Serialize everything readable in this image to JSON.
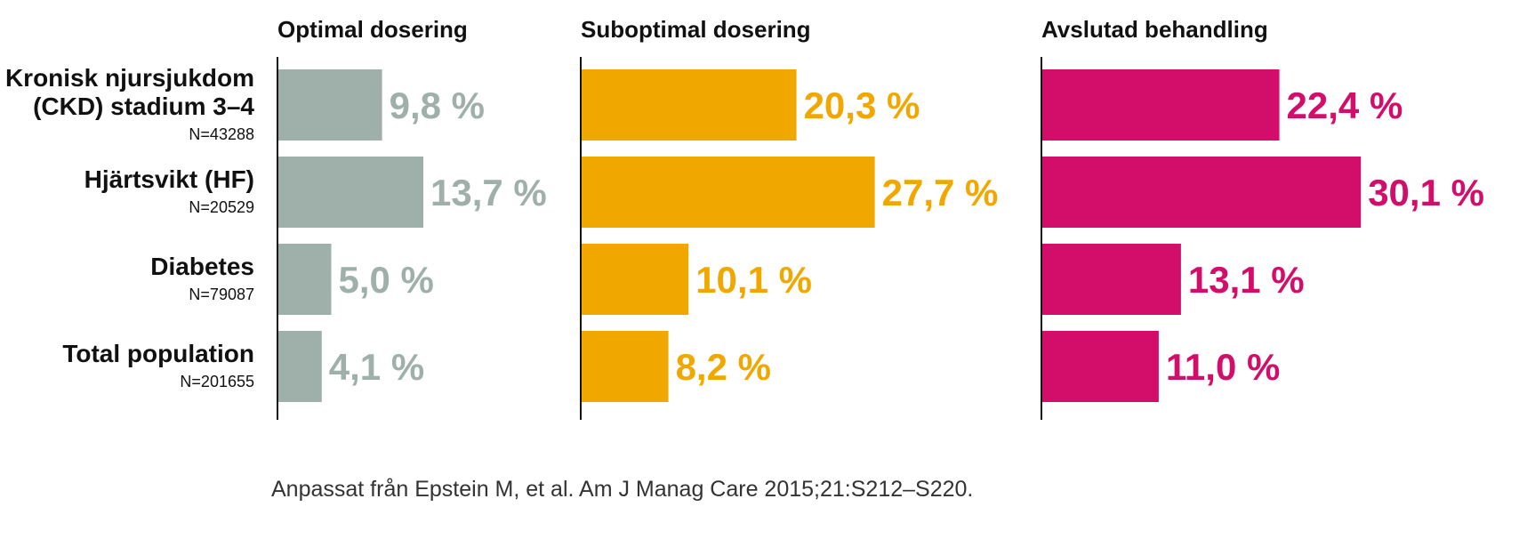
{
  "chart_data": {
    "type": "bar",
    "orientation": "horizontal",
    "categories": [
      {
        "label_lines": [
          "Kronisk njursjukdom",
          "(CKD) stadium 3–4"
        ],
        "n": "N=43288"
      },
      {
        "label_lines": [
          "Hjärtsvikt (HF)"
        ],
        "n": "N=20529"
      },
      {
        "label_lines": [
          "Diabetes"
        ],
        "n": "N=79087"
      },
      {
        "label_lines": [
          "Total population"
        ],
        "n": "N=201655"
      }
    ],
    "panels": [
      {
        "title": "Optimal dosering",
        "color": "#9fb0aa",
        "values": [
          9.8,
          13.7,
          5.0,
          4.1
        ],
        "value_labels": [
          "9,8 %",
          "13,7 %",
          "5,0 %",
          "4,1 %"
        ]
      },
      {
        "title": "Suboptimal dosering",
        "color": "#f0a800",
        "values": [
          20.3,
          27.7,
          10.1,
          8.2
        ],
        "value_labels": [
          "20,3 %",
          "27,7 %",
          "10,1 %",
          "8,2 %"
        ]
      },
      {
        "title": "Avslutad behandling",
        "color": "#d20d6a",
        "values": [
          22.4,
          30.1,
          13.1,
          11.0
        ],
        "value_labels": [
          "22,4 %",
          "30,1 %",
          "13,1 %",
          "11,0 %"
        ]
      }
    ],
    "unit": "%",
    "grid": false,
    "legend": "none"
  },
  "source": "Anpassat från Epstein M, et al. Am J Manag Care 2015;21:S212–S220."
}
